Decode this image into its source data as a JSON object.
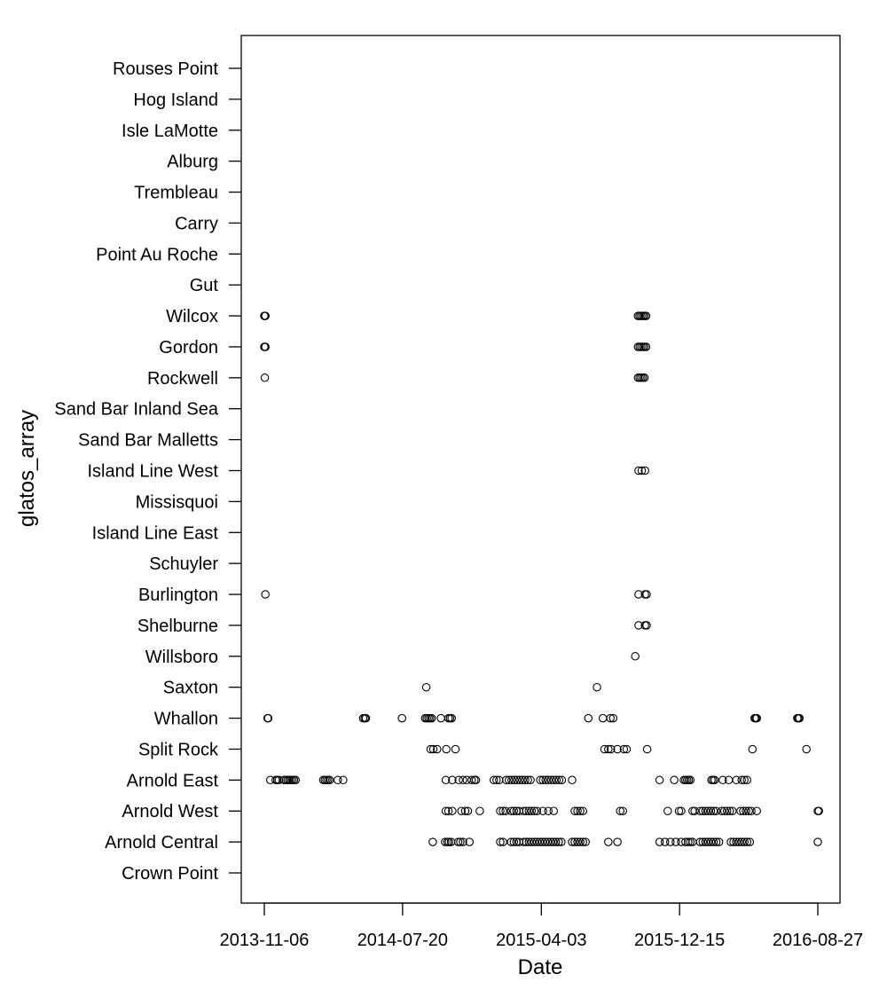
{
  "chart_data": {
    "type": "scatter",
    "title": "",
    "xlabel": "Date",
    "ylabel": "glatos_array",
    "x_ticks": [
      "2013-11-06",
      "2014-07-20",
      "2015-04-03",
      "2015-12-15",
      "2016-08-27"
    ],
    "xlim": [
      "2013-10-17",
      "2016-09-16"
    ],
    "categories": [
      "Crown Point",
      "Arnold Central",
      "Arnold West",
      "Arnold East",
      "Split Rock",
      "Whallon",
      "Saxton",
      "Willsboro",
      "Shelburne",
      "Burlington",
      "Schuyler",
      "Island Line East",
      "Missisquoi",
      "Island Line West",
      "Sand Bar Malletts",
      "Sand Bar Inland Sea",
      "Rockwell",
      "Gordon",
      "Wilcox",
      "Gut",
      "Point Au Roche",
      "Carry",
      "Trembleau",
      "Alburg",
      "Isle LaMotte",
      "Hog Island",
      "Rouses Point"
    ],
    "grid": false,
    "legend": "none",
    "marker": "open-circle",
    "points": [
      {
        "x": "2013-11-06",
        "y": "Wilcox"
      },
      {
        "x": "2013-11-07",
        "y": "Wilcox"
      },
      {
        "x": "2013-11-08",
        "y": "Wilcox"
      },
      {
        "x": "2013-11-06",
        "y": "Gordon"
      },
      {
        "x": "2013-11-07",
        "y": "Gordon"
      },
      {
        "x": "2013-11-08",
        "y": "Gordon"
      },
      {
        "x": "2013-11-07",
        "y": "Rockwell"
      },
      {
        "x": "2013-11-08",
        "y": "Burlington"
      },
      {
        "x": "2013-11-12",
        "y": "Whallon"
      },
      {
        "x": "2013-11-13",
        "y": "Whallon"
      },
      {
        "x": "2013-11-17",
        "y": "Arnold East"
      },
      {
        "x": "2013-11-27",
        "y": "Arnold East"
      },
      {
        "x": "2013-11-30",
        "y": "Arnold East"
      },
      {
        "x": "2013-12-03",
        "y": "Arnold East"
      },
      {
        "x": "2013-12-12",
        "y": "Arnold East"
      },
      {
        "x": "2013-12-16",
        "y": "Arnold East"
      },
      {
        "x": "2013-12-19",
        "y": "Arnold East"
      },
      {
        "x": "2013-12-22",
        "y": "Arnold East"
      },
      {
        "x": "2013-12-25",
        "y": "Arnold East"
      },
      {
        "x": "2013-12-28",
        "y": "Arnold East"
      },
      {
        "x": "2013-12-31",
        "y": "Arnold East"
      },
      {
        "x": "2014-01-03",
        "y": "Arnold East"
      },
      {
        "x": "2014-02-23",
        "y": "Arnold East"
      },
      {
        "x": "2014-02-26",
        "y": "Arnold East"
      },
      {
        "x": "2014-03-01",
        "y": "Arnold East"
      },
      {
        "x": "2014-03-04",
        "y": "Arnold East"
      },
      {
        "x": "2014-03-07",
        "y": "Arnold East"
      },
      {
        "x": "2014-03-22",
        "y": "Arnold East"
      },
      {
        "x": "2014-04-01",
        "y": "Arnold East"
      },
      {
        "x": "2014-05-08",
        "y": "Whallon"
      },
      {
        "x": "2014-05-11",
        "y": "Whallon"
      },
      {
        "x": "2014-05-13",
        "y": "Whallon"
      },
      {
        "x": "2014-07-19",
        "y": "Whallon"
      },
      {
        "x": "2014-08-31",
        "y": "Whallon"
      },
      {
        "x": "2014-09-03",
        "y": "Whallon"
      },
      {
        "x": "2014-09-06",
        "y": "Whallon"
      },
      {
        "x": "2014-09-09",
        "y": "Whallon"
      },
      {
        "x": "2014-09-12",
        "y": "Whallon"
      },
      {
        "x": "2014-09-29",
        "y": "Whallon"
      },
      {
        "x": "2014-10-13",
        "y": "Whallon"
      },
      {
        "x": "2014-10-16",
        "y": "Whallon"
      },
      {
        "x": "2014-10-19",
        "y": "Whallon"
      },
      {
        "x": "2014-09-02",
        "y": "Saxton"
      },
      {
        "x": "2014-09-10",
        "y": "Split Rock"
      },
      {
        "x": "2014-09-15",
        "y": "Split Rock"
      },
      {
        "x": "2014-09-22",
        "y": "Split Rock"
      },
      {
        "x": "2014-10-09",
        "y": "Split Rock"
      },
      {
        "x": "2014-10-26",
        "y": "Split Rock"
      },
      {
        "x": "2014-09-14",
        "y": "Arnold Central"
      },
      {
        "x": "2014-10-07",
        "y": "Arnold Central"
      },
      {
        "x": "2014-10-11",
        "y": "Arnold Central"
      },
      {
        "x": "2014-10-14",
        "y": "Arnold Central"
      },
      {
        "x": "2014-10-18",
        "y": "Arnold Central"
      },
      {
        "x": "2014-10-31",
        "y": "Arnold Central"
      },
      {
        "x": "2014-11-04",
        "y": "Arnold Central"
      },
      {
        "x": "2014-11-09",
        "y": "Arnold Central"
      },
      {
        "x": "2014-11-21",
        "y": "Arnold Central"
      },
      {
        "x": "2014-10-08",
        "y": "Arnold West"
      },
      {
        "x": "2014-10-13",
        "y": "Arnold West"
      },
      {
        "x": "2014-10-20",
        "y": "Arnold West"
      },
      {
        "x": "2014-11-06",
        "y": "Arnold West"
      },
      {
        "x": "2014-11-13",
        "y": "Arnold West"
      },
      {
        "x": "2014-11-18",
        "y": "Arnold West"
      },
      {
        "x": "2014-12-10",
        "y": "Arnold West"
      },
      {
        "x": "2014-10-08",
        "y": "Arnold East"
      },
      {
        "x": "2014-10-20",
        "y": "Arnold East"
      },
      {
        "x": "2014-11-01",
        "y": "Arnold East"
      },
      {
        "x": "2014-11-09",
        "y": "Arnold East"
      },
      {
        "x": "2014-11-16",
        "y": "Arnold East"
      },
      {
        "x": "2014-11-25",
        "y": "Arnold East"
      },
      {
        "x": "2014-11-30",
        "y": "Arnold East"
      },
      {
        "x": "2014-12-03",
        "y": "Arnold East"
      },
      {
        "x": "2015-01-05",
        "y": "Arnold East"
      },
      {
        "x": "2015-01-10",
        "y": "Arnold East"
      },
      {
        "x": "2015-01-15",
        "y": "Arnold East"
      },
      {
        "x": "2015-01-28",
        "y": "Arnold East"
      },
      {
        "x": "2015-02-02",
        "y": "Arnold East"
      },
      {
        "x": "2015-02-07",
        "y": "Arnold East"
      },
      {
        "x": "2015-02-12",
        "y": "Arnold East"
      },
      {
        "x": "2015-02-17",
        "y": "Arnold East"
      },
      {
        "x": "2015-02-22",
        "y": "Arnold East"
      },
      {
        "x": "2015-02-27",
        "y": "Arnold East"
      },
      {
        "x": "2015-03-04",
        "y": "Arnold East"
      },
      {
        "x": "2015-03-09",
        "y": "Arnold East"
      },
      {
        "x": "2015-03-14",
        "y": "Arnold East"
      },
      {
        "x": "2015-04-01",
        "y": "Arnold East"
      },
      {
        "x": "2015-04-06",
        "y": "Arnold East"
      },
      {
        "x": "2015-04-11",
        "y": "Arnold East"
      },
      {
        "x": "2015-04-16",
        "y": "Arnold East"
      },
      {
        "x": "2015-04-21",
        "y": "Arnold East"
      },
      {
        "x": "2015-04-26",
        "y": "Arnold East"
      },
      {
        "x": "2015-05-01",
        "y": "Arnold East"
      },
      {
        "x": "2015-05-06",
        "y": "Arnold East"
      },
      {
        "x": "2015-05-11",
        "y": "Arnold East"
      },
      {
        "x": "2015-05-30",
        "y": "Arnold East"
      },
      {
        "x": "2015-01-17",
        "y": "Arnold West"
      },
      {
        "x": "2015-01-22",
        "y": "Arnold West"
      },
      {
        "x": "2015-01-27",
        "y": "Arnold West"
      },
      {
        "x": "2015-02-06",
        "y": "Arnold West"
      },
      {
        "x": "2015-02-11",
        "y": "Arnold West"
      },
      {
        "x": "2015-02-16",
        "y": "Arnold West"
      },
      {
        "x": "2015-02-21",
        "y": "Arnold West"
      },
      {
        "x": "2015-03-01",
        "y": "Arnold West"
      },
      {
        "x": "2015-03-06",
        "y": "Arnold West"
      },
      {
        "x": "2015-03-11",
        "y": "Arnold West"
      },
      {
        "x": "2015-03-16",
        "y": "Arnold West"
      },
      {
        "x": "2015-03-21",
        "y": "Arnold West"
      },
      {
        "x": "2015-03-26",
        "y": "Arnold West"
      },
      {
        "x": "2015-04-06",
        "y": "Arnold West"
      },
      {
        "x": "2015-04-16",
        "y": "Arnold West"
      },
      {
        "x": "2015-04-26",
        "y": "Arnold West"
      },
      {
        "x": "2015-06-04",
        "y": "Arnold West"
      },
      {
        "x": "2015-06-09",
        "y": "Arnold West"
      },
      {
        "x": "2015-06-14",
        "y": "Arnold West"
      },
      {
        "x": "2015-06-19",
        "y": "Arnold West"
      },
      {
        "x": "2015-01-17",
        "y": "Arnold Central"
      },
      {
        "x": "2015-01-22",
        "y": "Arnold Central"
      },
      {
        "x": "2015-02-06",
        "y": "Arnold Central"
      },
      {
        "x": "2015-02-11",
        "y": "Arnold Central"
      },
      {
        "x": "2015-02-16",
        "y": "Arnold Central"
      },
      {
        "x": "2015-02-21",
        "y": "Arnold Central"
      },
      {
        "x": "2015-03-01",
        "y": "Arnold Central"
      },
      {
        "x": "2015-03-06",
        "y": "Arnold Central"
      },
      {
        "x": "2015-03-11",
        "y": "Arnold Central"
      },
      {
        "x": "2015-03-16",
        "y": "Arnold Central"
      },
      {
        "x": "2015-03-21",
        "y": "Arnold Central"
      },
      {
        "x": "2015-03-26",
        "y": "Arnold Central"
      },
      {
        "x": "2015-03-31",
        "y": "Arnold Central"
      },
      {
        "x": "2015-04-05",
        "y": "Arnold Central"
      },
      {
        "x": "2015-04-10",
        "y": "Arnold Central"
      },
      {
        "x": "2015-04-15",
        "y": "Arnold Central"
      },
      {
        "x": "2015-04-20",
        "y": "Arnold Central"
      },
      {
        "x": "2015-04-25",
        "y": "Arnold Central"
      },
      {
        "x": "2015-04-30",
        "y": "Arnold Central"
      },
      {
        "x": "2015-05-05",
        "y": "Arnold Central"
      },
      {
        "x": "2015-05-10",
        "y": "Arnold Central"
      },
      {
        "x": "2015-05-30",
        "y": "Arnold Central"
      },
      {
        "x": "2015-06-04",
        "y": "Arnold Central"
      },
      {
        "x": "2015-06-09",
        "y": "Arnold Central"
      },
      {
        "x": "2015-06-14",
        "y": "Arnold Central"
      },
      {
        "x": "2015-06-19",
        "y": "Arnold Central"
      },
      {
        "x": "2015-06-24",
        "y": "Arnold Central"
      },
      {
        "x": "2015-06-29",
        "y": "Whallon"
      },
      {
        "x": "2015-07-26",
        "y": "Whallon"
      },
      {
        "x": "2015-08-09",
        "y": "Whallon"
      },
      {
        "x": "2015-08-14",
        "y": "Whallon"
      },
      {
        "x": "2015-07-15",
        "y": "Saxton"
      },
      {
        "x": "2015-07-29",
        "y": "Split Rock"
      },
      {
        "x": "2015-08-05",
        "y": "Split Rock"
      },
      {
        "x": "2015-08-10",
        "y": "Split Rock"
      },
      {
        "x": "2015-08-22",
        "y": "Split Rock"
      },
      {
        "x": "2015-09-03",
        "y": "Split Rock"
      },
      {
        "x": "2015-09-08",
        "y": "Split Rock"
      },
      {
        "x": "2015-10-16",
        "y": "Split Rock"
      },
      {
        "x": "2015-08-05",
        "y": "Arnold Central"
      },
      {
        "x": "2015-08-22",
        "y": "Arnold Central"
      },
      {
        "x": "2015-08-27",
        "y": "Arnold West"
      },
      {
        "x": "2015-09-01",
        "y": "Arnold West"
      },
      {
        "x": "2015-09-24",
        "y": "Willsboro"
      },
      {
        "x": "2015-09-29",
        "y": "Wilcox"
      },
      {
        "x": "2015-10-02",
        "y": "Wilcox"
      },
      {
        "x": "2015-10-05",
        "y": "Wilcox"
      },
      {
        "x": "2015-10-08",
        "y": "Wilcox"
      },
      {
        "x": "2015-10-11",
        "y": "Wilcox"
      },
      {
        "x": "2015-10-14",
        "y": "Wilcox"
      },
      {
        "x": "2015-09-29",
        "y": "Gordon"
      },
      {
        "x": "2015-10-02",
        "y": "Gordon"
      },
      {
        "x": "2015-10-05",
        "y": "Gordon"
      },
      {
        "x": "2015-10-08",
        "y": "Gordon"
      },
      {
        "x": "2015-10-11",
        "y": "Gordon"
      },
      {
        "x": "2015-10-14",
        "y": "Gordon"
      },
      {
        "x": "2015-09-29",
        "y": "Rockwell"
      },
      {
        "x": "2015-10-02",
        "y": "Rockwell"
      },
      {
        "x": "2015-10-05",
        "y": "Rockwell"
      },
      {
        "x": "2015-10-08",
        "y": "Rockwell"
      },
      {
        "x": "2015-10-11",
        "y": "Rockwell"
      },
      {
        "x": "2015-09-30",
        "y": "Island Line West"
      },
      {
        "x": "2015-10-06",
        "y": "Island Line West"
      },
      {
        "x": "2015-10-12",
        "y": "Island Line West"
      },
      {
        "x": "2015-09-30",
        "y": "Burlington"
      },
      {
        "x": "2015-10-12",
        "y": "Burlington"
      },
      {
        "x": "2015-10-15",
        "y": "Burlington"
      },
      {
        "x": "2015-09-30",
        "y": "Shelburne"
      },
      {
        "x": "2015-10-12",
        "y": "Shelburne"
      },
      {
        "x": "2015-10-15",
        "y": "Shelburne"
      },
      {
        "x": "2015-11-08",
        "y": "Arnold East"
      },
      {
        "x": "2015-12-05",
        "y": "Arnold East"
      },
      {
        "x": "2015-12-23",
        "y": "Arnold East"
      },
      {
        "x": "2015-12-26",
        "y": "Arnold East"
      },
      {
        "x": "2015-12-29",
        "y": "Arnold East"
      },
      {
        "x": "2016-01-01",
        "y": "Arnold East"
      },
      {
        "x": "2016-01-04",
        "y": "Arnold East"
      },
      {
        "x": "2016-02-12",
        "y": "Arnold East"
      },
      {
        "x": "2016-02-15",
        "y": "Arnold East"
      },
      {
        "x": "2016-02-18",
        "y": "Arnold East"
      },
      {
        "x": "2016-03-04",
        "y": "Arnold East"
      },
      {
        "x": "2016-03-15",
        "y": "Arnold East"
      },
      {
        "x": "2016-03-29",
        "y": "Arnold East"
      },
      {
        "x": "2016-04-08",
        "y": "Arnold East"
      },
      {
        "x": "2016-04-13",
        "y": "Arnold East"
      },
      {
        "x": "2016-04-18",
        "y": "Arnold East"
      },
      {
        "x": "2015-11-23",
        "y": "Arnold West"
      },
      {
        "x": "2015-12-14",
        "y": "Arnold West"
      },
      {
        "x": "2015-12-18",
        "y": "Arnold West"
      },
      {
        "x": "2016-01-08",
        "y": "Arnold West"
      },
      {
        "x": "2016-01-12",
        "y": "Arnold West"
      },
      {
        "x": "2016-01-22",
        "y": "Arnold West"
      },
      {
        "x": "2016-01-27",
        "y": "Arnold West"
      },
      {
        "x": "2016-02-01",
        "y": "Arnold West"
      },
      {
        "x": "2016-02-06",
        "y": "Arnold West"
      },
      {
        "x": "2016-02-11",
        "y": "Arnold West"
      },
      {
        "x": "2016-02-16",
        "y": "Arnold West"
      },
      {
        "x": "2016-02-21",
        "y": "Arnold West"
      },
      {
        "x": "2016-03-02",
        "y": "Arnold West"
      },
      {
        "x": "2016-03-07",
        "y": "Arnold West"
      },
      {
        "x": "2016-03-12",
        "y": "Arnold West"
      },
      {
        "x": "2016-03-17",
        "y": "Arnold West"
      },
      {
        "x": "2016-03-22",
        "y": "Arnold West"
      },
      {
        "x": "2016-04-06",
        "y": "Arnold West"
      },
      {
        "x": "2016-04-11",
        "y": "Arnold West"
      },
      {
        "x": "2016-04-16",
        "y": "Arnold West"
      },
      {
        "x": "2016-04-21",
        "y": "Arnold West"
      },
      {
        "x": "2016-04-26",
        "y": "Arnold West"
      },
      {
        "x": "2016-05-06",
        "y": "Arnold West"
      },
      {
        "x": "2015-11-08",
        "y": "Arnold Central"
      },
      {
        "x": "2015-11-18",
        "y": "Arnold Central"
      },
      {
        "x": "2015-11-28",
        "y": "Arnold Central"
      },
      {
        "x": "2015-12-08",
        "y": "Arnold Central"
      },
      {
        "x": "2015-12-18",
        "y": "Arnold Central"
      },
      {
        "x": "2015-12-26",
        "y": "Arnold Central"
      },
      {
        "x": "2015-12-31",
        "y": "Arnold Central"
      },
      {
        "x": "2016-01-04",
        "y": "Arnold Central"
      },
      {
        "x": "2016-01-08",
        "y": "Arnold Central"
      },
      {
        "x": "2016-01-22",
        "y": "Arnold Central"
      },
      {
        "x": "2016-01-27",
        "y": "Arnold Central"
      },
      {
        "x": "2016-02-01",
        "y": "Arnold Central"
      },
      {
        "x": "2016-02-06",
        "y": "Arnold Central"
      },
      {
        "x": "2016-02-11",
        "y": "Arnold Central"
      },
      {
        "x": "2016-02-16",
        "y": "Arnold Central"
      },
      {
        "x": "2016-02-21",
        "y": "Arnold Central"
      },
      {
        "x": "2016-02-26",
        "y": "Arnold Central"
      },
      {
        "x": "2016-03-19",
        "y": "Arnold Central"
      },
      {
        "x": "2016-03-24",
        "y": "Arnold Central"
      },
      {
        "x": "2016-03-29",
        "y": "Arnold Central"
      },
      {
        "x": "2016-04-03",
        "y": "Arnold Central"
      },
      {
        "x": "2016-04-08",
        "y": "Arnold Central"
      },
      {
        "x": "2016-04-13",
        "y": "Arnold Central"
      },
      {
        "x": "2016-04-18",
        "y": "Arnold Central"
      },
      {
        "x": "2016-04-23",
        "y": "Arnold Central"
      },
      {
        "x": "2016-05-02",
        "y": "Whallon"
      },
      {
        "x": "2016-05-04",
        "y": "Whallon"
      },
      {
        "x": "2016-05-06",
        "y": "Whallon"
      },
      {
        "x": "2016-07-20",
        "y": "Whallon"
      },
      {
        "x": "2016-07-22",
        "y": "Whallon"
      },
      {
        "x": "2016-07-24",
        "y": "Whallon"
      },
      {
        "x": "2016-04-28",
        "y": "Split Rock"
      },
      {
        "x": "2016-08-06",
        "y": "Split Rock"
      },
      {
        "x": "2016-08-27",
        "y": "Arnold West"
      },
      {
        "x": "2016-08-29",
        "y": "Arnold West"
      },
      {
        "x": "2016-08-27",
        "y": "Arnold Central"
      }
    ]
  }
}
